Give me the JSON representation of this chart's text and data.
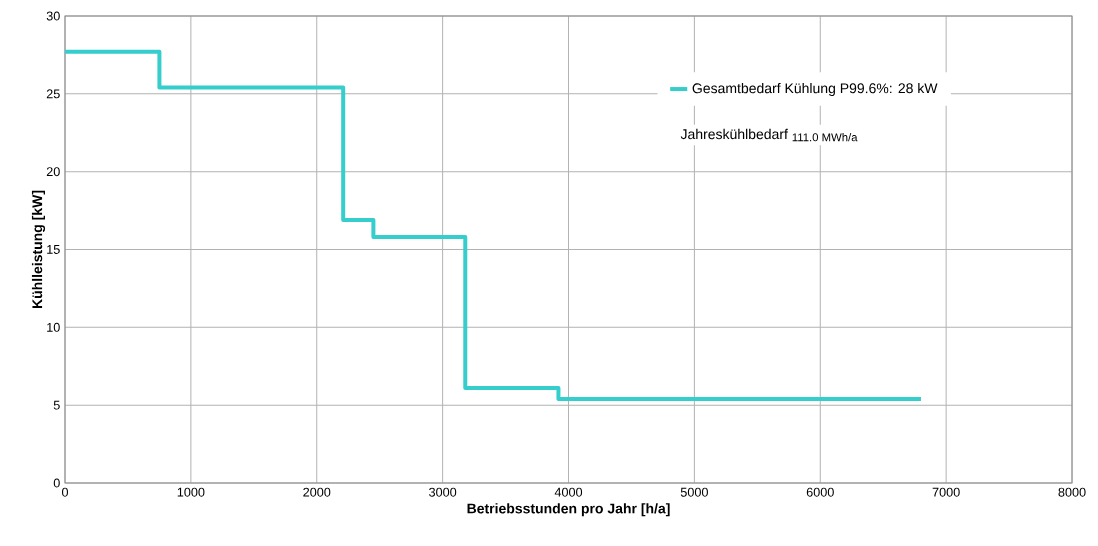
{
  "chart_data": {
    "type": "step",
    "xlabel": "Betriebsstunden pro Jahr [h/a]",
    "ylabel": "Kühlleistung [kW]",
    "x": [
      0,
      750,
      2210,
      2450,
      3180,
      3920,
      6800
    ],
    "series": [
      {
        "name": "Gesamtbedarf Kühlung P99.6%: 28 kW",
        "color": "#36cdcd",
        "values": [
          27.7,
          25.4,
          16.9,
          15.8,
          6.1,
          5.4,
          5.4
        ]
      }
    ],
    "xlim": [
      0,
      8000
    ],
    "ylim": [
      0,
      30
    ],
    "xticks": [
      0,
      1000,
      2000,
      3000,
      4000,
      5000,
      6000,
      7000,
      8000
    ],
    "yticks": [
      0,
      5,
      10,
      15,
      20,
      25,
      30
    ],
    "grid": true,
    "legend": "top right",
    "annotations": [
      "Jahreskühlbedarf",
      "111.0 MWh/a"
    ]
  }
}
